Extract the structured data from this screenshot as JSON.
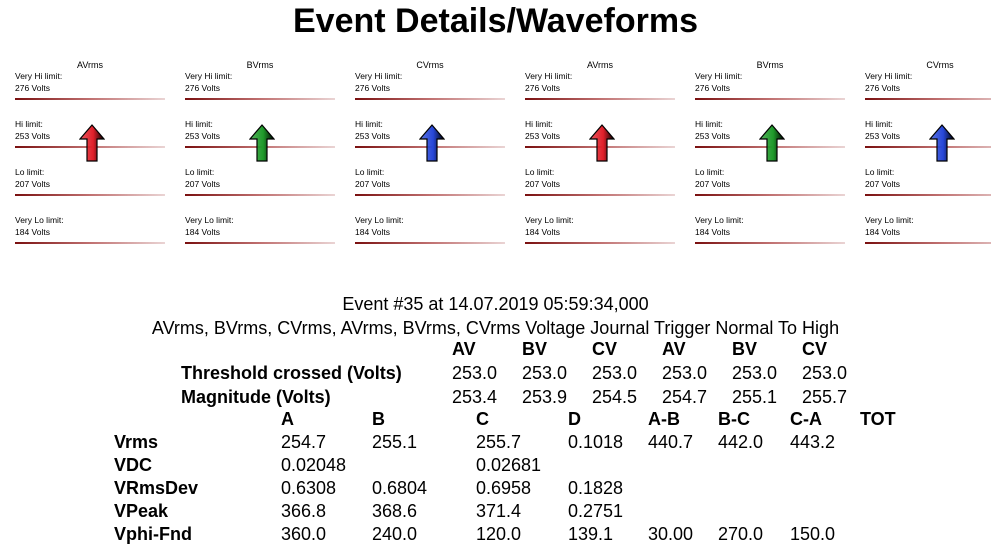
{
  "title": "Event Details/Waveforms",
  "level_labels": [
    "Very Hi limit:",
    "Hi limit:",
    "Lo limit:",
    "Very Lo limit:"
  ],
  "level_values": [
    "276 Volts",
    "253 Volts",
    "207 Volts",
    "184 Volts"
  ],
  "panels": [
    {
      "phase": "AVrms",
      "arrow_color": "#e0202a"
    },
    {
      "phase": "BVrms",
      "arrow_color": "#1f9a2a"
    },
    {
      "phase": "CVrms",
      "arrow_color": "#2747d8"
    },
    {
      "phase": "AVrms",
      "arrow_color": "#e0202a"
    },
    {
      "phase": "BVrms",
      "arrow_color": "#1f9a2a"
    },
    {
      "phase": "CVrms",
      "arrow_color": "#2747d8"
    }
  ],
  "event": {
    "header": "Event #35 at 14.07.2019 05:59:34,000",
    "description": "AVrms, BVrms, CVrms, AVrms, BVrms, CVrms Voltage Journal Trigger Normal To High"
  },
  "threshold_table": {
    "columns": [
      "AV",
      "BV",
      "CV",
      "AV",
      "BV",
      "CV"
    ],
    "rows": [
      {
        "label": "Threshold crossed (Volts)",
        "values": [
          "253.0",
          "253.0",
          "253.0",
          "253.0",
          "253.0",
          "253.0"
        ]
      },
      {
        "label": "Magnitude (Volts)",
        "values": [
          "253.4",
          "253.9",
          "254.5",
          "254.7",
          "255.1",
          "255.7"
        ]
      }
    ]
  },
  "measure_table": {
    "columns": [
      "A",
      "B",
      "C",
      "D",
      "A-B",
      "B-C",
      "C-A",
      "TOT"
    ],
    "rows": [
      {
        "label": "Vrms",
        "values": [
          "254.7",
          "255.1",
          "255.7",
          "0.1018",
          "440.7",
          "442.0",
          "443.2",
          ""
        ]
      },
      {
        "label": "VDC",
        "values": [
          "0.02048",
          "",
          "0.02681",
          "",
          "",
          "",
          "",
          ""
        ]
      },
      {
        "label": "VRmsDev",
        "values": [
          "0.6308",
          "0.6804",
          "0.6958",
          "0.1828",
          "",
          "",
          "",
          ""
        ]
      },
      {
        "label": "VPeak",
        "values": [
          "366.8",
          "368.6",
          "371.4",
          "0.2751",
          "",
          "",
          "",
          ""
        ]
      },
      {
        "label": "Vphi-Fnd",
        "values": [
          "360.0",
          "240.0",
          "120.0",
          "139.1",
          "30.00",
          "270.0",
          "150.0",
          ""
        ]
      }
    ]
  }
}
